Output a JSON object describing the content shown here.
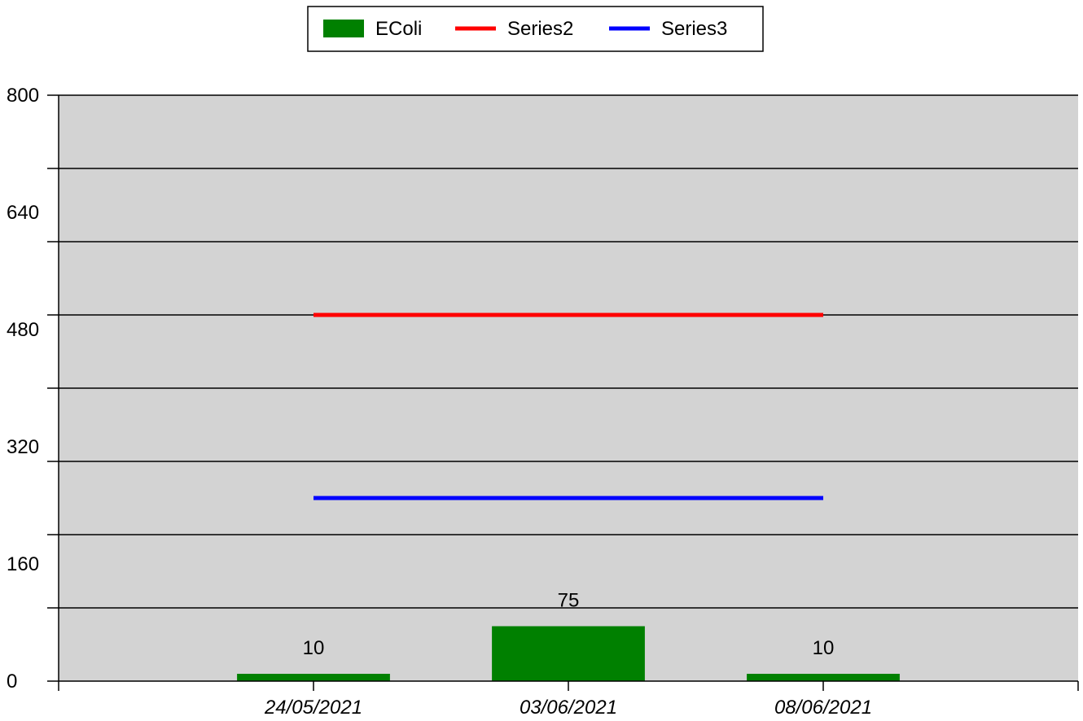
{
  "chart_data": {
    "type": "bar",
    "categories": [
      "24/05/2021",
      "03/06/2021",
      "08/06/2021"
    ],
    "series": [
      {
        "name": "EColi",
        "kind": "bar",
        "color": "#008000",
        "values": [
          10,
          75,
          10
        ],
        "data_labels": [
          "10",
          "75",
          "10"
        ]
      },
      {
        "name": "Series2",
        "kind": "line",
        "color": "#ff0000",
        "values": [
          500,
          500,
          500
        ]
      },
      {
        "name": "Series3",
        "kind": "line",
        "color": "#0000ff",
        "values": [
          250,
          250,
          250
        ]
      }
    ],
    "ylim": [
      0,
      800
    ],
    "y_ticks": [
      0,
      160,
      320,
      480,
      640,
      800
    ],
    "y_minor_step": 100,
    "grid": true,
    "plot_background": "#d3d3d3",
    "legend_position": "top-center",
    "title": "",
    "xlabel": "",
    "ylabel": ""
  }
}
